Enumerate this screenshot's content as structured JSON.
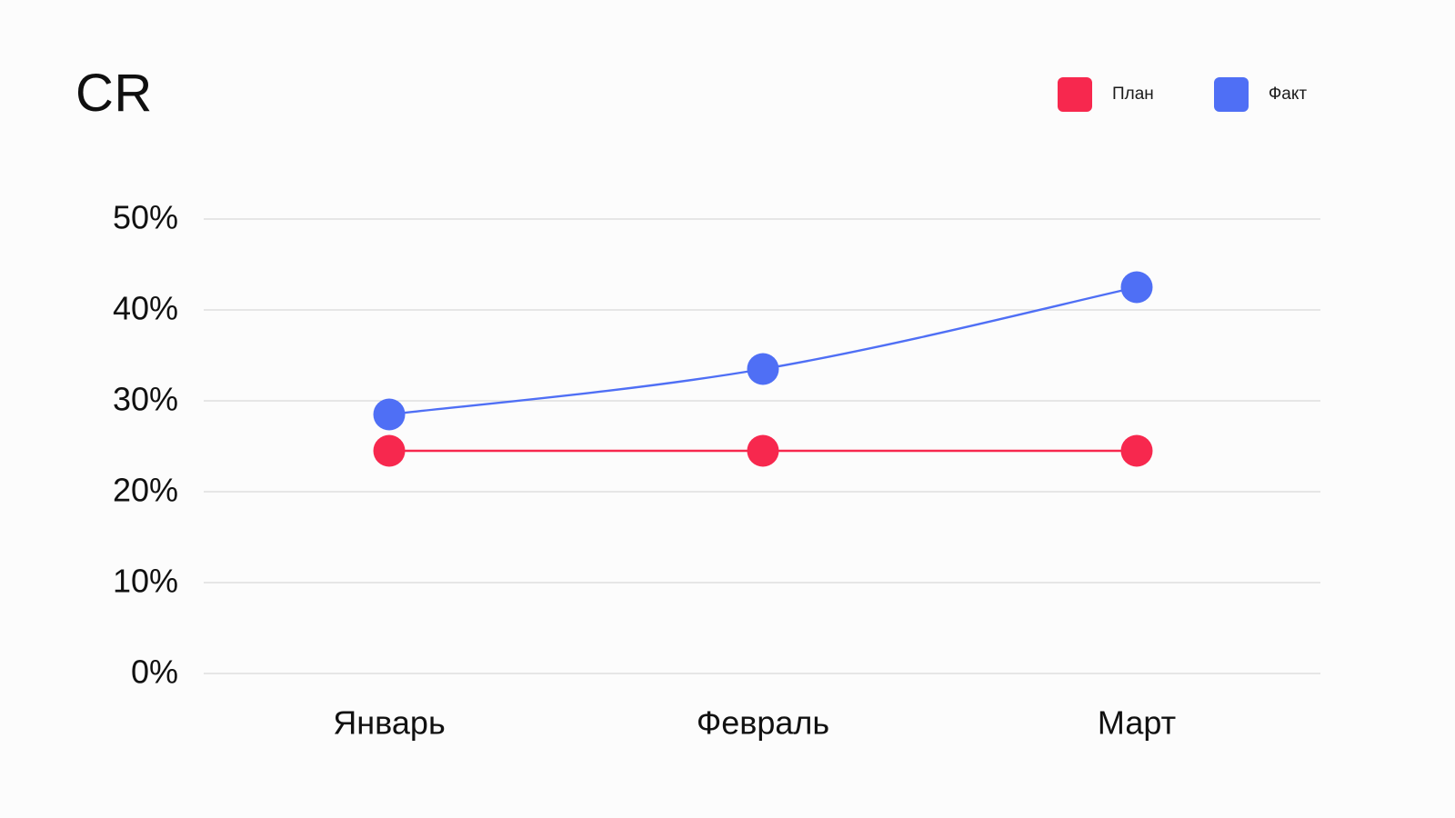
{
  "chart_data": {
    "type": "line",
    "title": "CR",
    "xlabel": "",
    "ylabel": "",
    "categories": [
      "Январь",
      "Февраль",
      "Март"
    ],
    "y_ticks": [
      "0%",
      "10%",
      "20%",
      "30%",
      "40%",
      "50%"
    ],
    "ylim": [
      0,
      50
    ],
    "grid": true,
    "legend_position": "top-right",
    "series": [
      {
        "name": "План",
        "values": [
          24.5,
          24.5,
          24.5
        ],
        "color": "#f7284e",
        "smooth": false
      },
      {
        "name": "Факт",
        "values": [
          28.5,
          33.5,
          42.5
        ],
        "color": "#4f6ff5",
        "smooth": true
      }
    ]
  }
}
